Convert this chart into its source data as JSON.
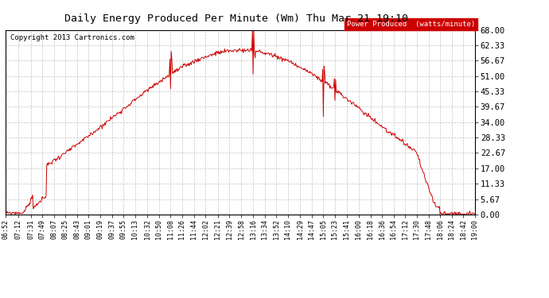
{
  "title": "Daily Energy Produced Per Minute (Wm) Thu Mar 21 19:10",
  "copyright": "Copyright 2013 Cartronics.com",
  "legend_label": "Power Produced  (watts/minute)",
  "legend_bg": "#cc0000",
  "legend_fg": "#ffffff",
  "line_color": "#cc0000",
  "bg_color": "#ffffff",
  "grid_color": "#aaaaaa",
  "yticks": [
    0.0,
    5.67,
    11.33,
    17.0,
    22.67,
    28.33,
    34.0,
    39.67,
    45.33,
    51.0,
    56.67,
    62.33,
    68.0
  ],
  "ymax": 68.0,
  "xtick_labels": [
    "06:52",
    "07:12",
    "07:31",
    "07:49",
    "08:07",
    "08:25",
    "08:43",
    "09:01",
    "09:19",
    "09:37",
    "09:55",
    "10:13",
    "10:32",
    "10:50",
    "11:08",
    "11:26",
    "11:44",
    "12:02",
    "12:21",
    "12:39",
    "12:58",
    "13:16",
    "13:34",
    "13:52",
    "14:10",
    "14:29",
    "14:47",
    "15:05",
    "15:23",
    "15:41",
    "16:00",
    "16:18",
    "16:36",
    "16:54",
    "17:12",
    "17:30",
    "17:48",
    "18:06",
    "18:24",
    "18:42",
    "19:00"
  ],
  "start_time": "06:52",
  "end_time": "19:00"
}
